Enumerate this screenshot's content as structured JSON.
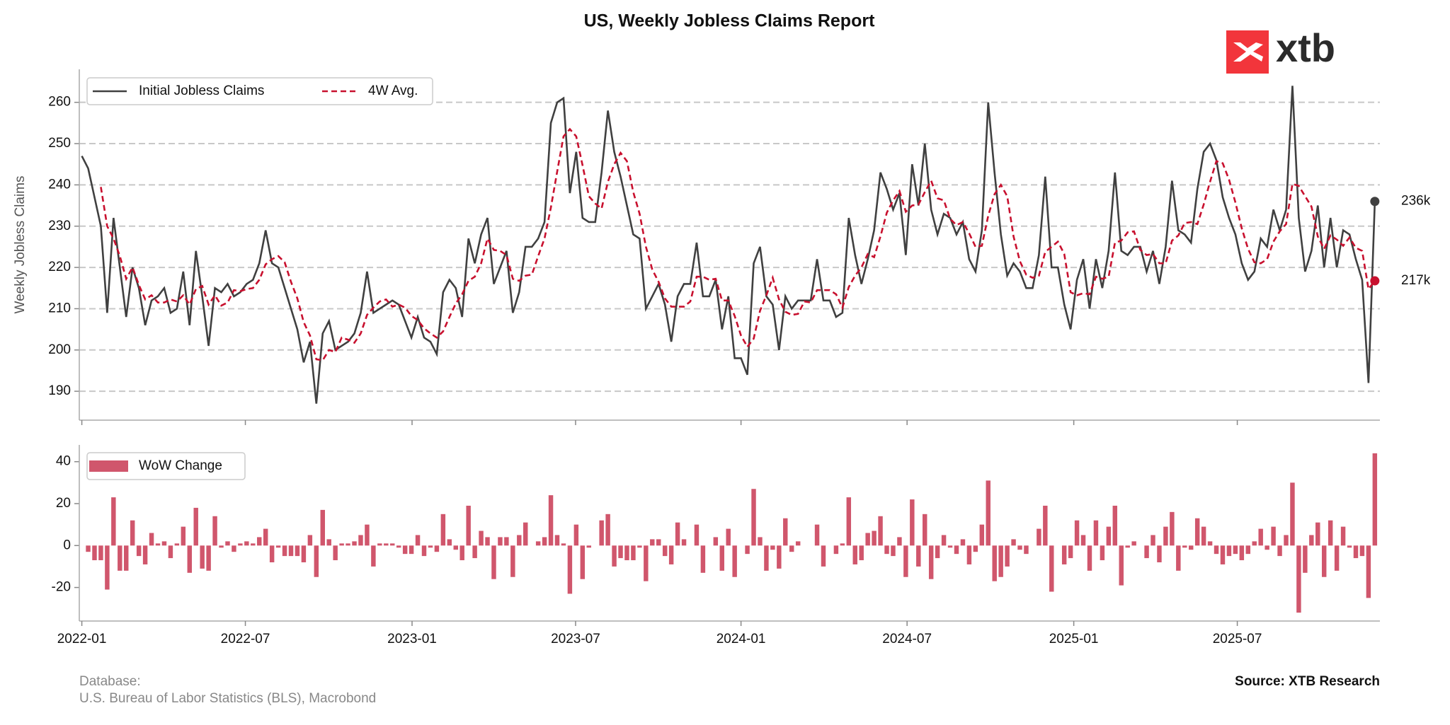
{
  "chart_data": [
    {
      "type": "line",
      "title": "US, Weekly Jobless Claims Report",
      "ylabel": "Weekly Jobless Claims",
      "ylim": [
        183,
        268
      ],
      "yticks": [
        190,
        200,
        210,
        220,
        230,
        240,
        250,
        260
      ],
      "grid": true,
      "legend": "upper left",
      "series": [
        {
          "name": "Initial Jobless Claims",
          "color": "#404040",
          "style": "solid",
          "last_label": "236k",
          "values": [
            247,
            244,
            237,
            230,
            209,
            232,
            220,
            208,
            220,
            215,
            206,
            212,
            213,
            215,
            209,
            210,
            219,
            206,
            224,
            213,
            201,
            215,
            214,
            216,
            213,
            214,
            216,
            217,
            221,
            229,
            221,
            220,
            215,
            210,
            205,
            197,
            202,
            187,
            204,
            207,
            200,
            201,
            202,
            204,
            209,
            219,
            209,
            210,
            211,
            212,
            211,
            207,
            203,
            208,
            203,
            202,
            199,
            214,
            217,
            215,
            208,
            227,
            221,
            228,
            232,
            216,
            220,
            224,
            209,
            214,
            225,
            225,
            227,
            231,
            255,
            260,
            261,
            238,
            248,
            232,
            231,
            231,
            243,
            258,
            248,
            242,
            235,
            228,
            227,
            210,
            213,
            216,
            211,
            202,
            213,
            216,
            216,
            226,
            213,
            213,
            217,
            205,
            213,
            198,
            198,
            194,
            221,
            225,
            213,
            211,
            200,
            213,
            210,
            212,
            212,
            212,
            222,
            212,
            212,
            208,
            209,
            232,
            223,
            216,
            222,
            229,
            243,
            239,
            234,
            238,
            223,
            245,
            235,
            250,
            234,
            228,
            233,
            232,
            228,
            231,
            222,
            219,
            229,
            260,
            243,
            228,
            218,
            221,
            219,
            215,
            215,
            223,
            242,
            220,
            220,
            211,
            205,
            217,
            222,
            210,
            222,
            215,
            224,
            243,
            224,
            223,
            225,
            225,
            219,
            224,
            216,
            225,
            241,
            229,
            228,
            226,
            239,
            248,
            250,
            246,
            237,
            232,
            228,
            221,
            217,
            219,
            227,
            225,
            234,
            229,
            234,
            264,
            232,
            219,
            224,
            235,
            220,
            232,
            220,
            229,
            228,
            222,
            217,
            192,
            236
          ]
        },
        {
          "name": "4W Avg.",
          "color": "#c8102e",
          "style": "dashed",
          "last_label": "217k",
          "values": [
            null,
            null,
            null,
            239.5,
            230,
            227,
            222.75,
            217.25,
            220,
            215.75,
            212.25,
            213.25,
            211.5,
            211.5,
            212.25,
            211.75,
            213.25,
            211,
            214.75,
            215.5,
            211,
            213.25,
            210.75,
            211.5,
            214.5,
            214.25,
            214.75,
            215,
            217,
            220.75,
            222,
            222.75,
            221.25,
            216.5,
            212.5,
            206.75,
            203.5,
            197.75,
            197.5,
            200,
            199.5,
            203,
            202.5,
            201.75,
            204,
            208.5,
            210.25,
            211.75,
            212.25,
            210.5,
            211,
            210.25,
            208.25,
            207.25,
            205.25,
            204,
            203,
            204.5,
            208,
            211.25,
            213.5,
            216.75,
            217.75,
            221,
            227,
            224.25,
            224,
            223,
            217.25,
            216.75,
            218,
            218.25,
            222.75,
            227,
            234.5,
            243.25,
            251.75,
            253.5,
            251.75,
            244.75,
            237.25,
            235.5,
            234.25,
            240.75,
            245,
            247.75,
            245.75,
            238.25,
            233,
            225,
            219.5,
            216.5,
            212.5,
            210.5,
            210.5,
            210.5,
            211.75,
            217.75,
            217.75,
            217,
            217.25,
            212,
            212,
            208.25,
            203.5,
            200.75,
            202.75,
            209.5,
            213.25,
            217.5,
            212.25,
            209.25,
            208.5,
            208.75,
            211.75,
            211.5,
            214.5,
            214.5,
            214.5,
            213.5,
            210.25,
            215.25,
            218,
            220,
            223.25,
            222.5,
            227.5,
            233.25,
            236.25,
            238.5,
            233.5,
            235,
            235.25,
            238.25,
            241,
            236.75,
            236.25,
            231.75,
            230.25,
            231,
            228.25,
            225,
            225.25,
            232.5,
            237.75,
            240,
            237.25,
            227.5,
            221.5,
            218.25,
            217.5,
            218,
            223.75,
            225,
            226.25,
            223.25,
            214,
            213.25,
            213.75,
            213.5,
            217.75,
            217.25,
            217.75,
            226,
            226.5,
            228.5,
            228.75,
            224.25,
            223,
            223.25,
            221,
            221,
            226.5,
            227.75,
            230.75,
            231,
            230.5,
            235.25,
            240.75,
            245.75,
            245.25,
            241.25,
            235.75,
            229.5,
            224.5,
            221.25,
            221,
            222,
            226.25,
            228.75,
            230.5,
            240.25,
            239.75,
            237.25,
            234.75,
            227.5,
            224.5,
            227.75,
            226.75,
            225.25,
            227.25,
            224.75,
            224,
            214.75,
            216.75
          ]
        }
      ]
    },
    {
      "type": "bar",
      "ylim": [
        -36,
        48
      ],
      "yticks": [
        -20,
        0,
        20,
        40
      ],
      "xlim": [
        -0.4,
        204.8
      ],
      "xticks": [
        {
          "value": 0,
          "label": "2022-01"
        },
        {
          "value": 25.8,
          "label": "2022-07"
        },
        {
          "value": 52.1,
          "label": "2023-01"
        },
        {
          "value": 77.9,
          "label": "2023-07"
        },
        {
          "value": 104,
          "label": "2024-01"
        },
        {
          "value": 130.2,
          "label": "2024-07"
        },
        {
          "value": 156.5,
          "label": "2025-01"
        },
        {
          "value": 182.3,
          "label": "2025-07"
        }
      ],
      "legend": "upper left",
      "series": [
        {
          "name": "WoW Change",
          "color": "#d0566c",
          "values": [
            null,
            -3,
            -7,
            -7,
            -21,
            23,
            -12,
            -12,
            12,
            -5,
            -9,
            6,
            1,
            2,
            -6,
            1,
            9,
            -13,
            18,
            -11,
            -12,
            14,
            -1,
            2,
            -3,
            1,
            2,
            1,
            4,
            8,
            -8,
            -1,
            -5,
            -5,
            -5,
            -8,
            5,
            -15,
            17,
            3,
            -7,
            1,
            1,
            2,
            5,
            10,
            -10,
            1,
            1,
            1,
            -1,
            -4,
            -4,
            5,
            -5,
            -1,
            -3,
            15,
            3,
            -2,
            -7,
            19,
            -6,
            7,
            4,
            -16,
            4,
            4,
            -15,
            5,
            11,
            0,
            2,
            4,
            24,
            5,
            1,
            -23,
            10,
            -16,
            -1,
            0,
            12,
            15,
            -10,
            -6,
            -7,
            -7,
            -1,
            -17,
            3,
            3,
            -5,
            -9,
            11,
            3,
            0,
            10,
            -13,
            0,
            4,
            -12,
            8,
            -15,
            0,
            -4,
            27,
            4,
            -12,
            -2,
            -11,
            13,
            -3,
            2,
            0,
            0,
            10,
            -10,
            0,
            -4,
            1,
            23,
            -9,
            -7,
            6,
            7,
            14,
            -4,
            -5,
            4,
            -15,
            22,
            -10,
            15,
            -16,
            -6,
            5,
            -1,
            -4,
            3,
            -9,
            -3,
            10,
            31,
            -17,
            -15,
            -10,
            3,
            -2,
            -4,
            0,
            8,
            19,
            -22,
            0,
            -9,
            -6,
            12,
            5,
            -12,
            12,
            -7,
            9,
            19,
            -19,
            -1,
            2,
            0,
            -6,
            5,
            -8,
            9,
            16,
            -12,
            -1,
            -2,
            13,
            9,
            2,
            -4,
            -9,
            -5,
            -4,
            -7,
            -4,
            2,
            8,
            -2,
            9,
            -5,
            5,
            30,
            -32,
            -13,
            5,
            11,
            -15,
            12,
            -12,
            9,
            -1,
            -6,
            -5,
            -25,
            44
          ]
        }
      ]
    }
  ],
  "logo": "xtb",
  "footer": {
    "database_label": "Database:",
    "database": "U.S. Bureau of Labor Statistics (BLS), Macrobond",
    "source": "Source: XTB Research"
  }
}
